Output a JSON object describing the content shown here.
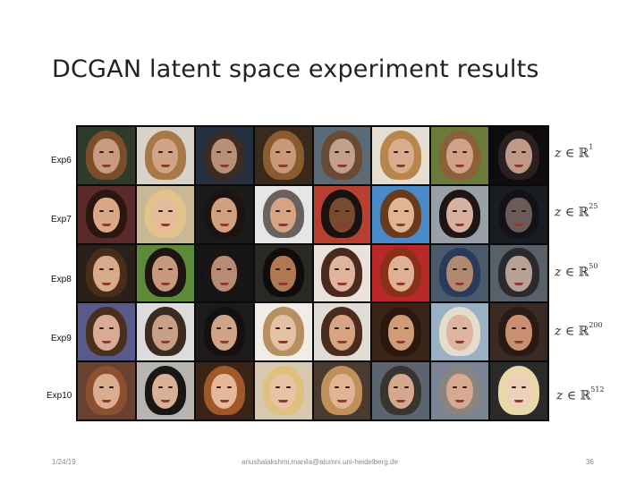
{
  "title": "DCGAN latent space experiment results",
  "rows": [
    {
      "label": "Exp6",
      "formula": {
        "var": "z",
        "op": "∈",
        "set": "ℝ",
        "exp": "1"
      },
      "cells": [
        {
          "bg": "#2e3a2a",
          "hair": "#7a4e2a",
          "skin": "#c89a80"
        },
        {
          "bg": "#d8d2c8",
          "hair": "#a87848",
          "skin": "#d0a484"
        },
        {
          "bg": "#243040",
          "hair": "#3a2c24",
          "skin": "#b89078"
        },
        {
          "bg": "#3a2a1e",
          "hair": "#8a5a30",
          "skin": "#c89878"
        },
        {
          "bg": "#5a6a76",
          "hair": "#6a4a34",
          "skin": "#c4a08a"
        },
        {
          "bg": "#e4ddd2",
          "hair": "#b8864c",
          "skin": "#d8ac8c"
        },
        {
          "bg": "#6a7a3a",
          "hair": "#8a6038",
          "skin": "#d0a088"
        },
        {
          "bg": "#0e0c0c",
          "hair": "#2a2020",
          "skin": "#c09888"
        }
      ]
    },
    {
      "label": "Exp7",
      "formula": {
        "var": "z",
        "op": "∈",
        "set": "ℝ",
        "exp": "25"
      },
      "cells": [
        {
          "bg": "#5a2a2a",
          "hair": "#2a1810",
          "skin": "#d8a888"
        },
        {
          "bg": "#c8b898",
          "hair": "#e2c488",
          "skin": "#e4bc9c"
        },
        {
          "bg": "#1a1a1a",
          "hair": "#1c1410",
          "skin": "#d0a080"
        },
        {
          "bg": "#e6e6e6",
          "hair": "#6a6060",
          "skin": "#d4a484"
        },
        {
          "bg": "#b84030",
          "hair": "#1a1210",
          "skin": "#7a4a30"
        },
        {
          "bg": "#4a8ac8",
          "hair": "#6a3a1c",
          "skin": "#e0b494"
        },
        {
          "bg": "#9aa0a8",
          "hair": "#1e1614",
          "skin": "#d8b0a0"
        },
        {
          "bg": "#1a1c24",
          "hair": "#141218",
          "skin": "#6a5a58"
        }
      ]
    },
    {
      "label": "Exp8",
      "formula": {
        "var": "z",
        "op": "∈",
        "set": "ℝ",
        "exp": "50"
      },
      "cells": [
        {
          "bg": "#2a201a",
          "hair": "#4a2c1a",
          "skin": "#d8aa8c"
        },
        {
          "bg": "#5a8a3a",
          "hair": "#1e1410",
          "skin": "#c8987c"
        },
        {
          "bg": "#141414",
          "hair": "#1a1414",
          "skin": "#b88c74"
        },
        {
          "bg": "#2a2824",
          "hair": "#100c0c",
          "skin": "#b07850"
        },
        {
          "bg": "#e8e2da",
          "hair": "#4a2a1c",
          "skin": "#e0b49c"
        },
        {
          "bg": "#b82828",
          "hair": "#8a3018",
          "skin": "#e0b094"
        },
        {
          "bg": "#4a5a6a",
          "hair": "#2a3a5a",
          "skin": "#b08a70"
        },
        {
          "bg": "#586068",
          "hair": "#2a2a2e",
          "skin": "#b8a094"
        }
      ]
    },
    {
      "label": "Exp9",
      "formula": {
        "var": "z",
        "op": "∈",
        "set": "ℝ",
        "exp": "200"
      },
      "cells": [
        {
          "bg": "#5a5a8a",
          "hair": "#4a2e1e",
          "skin": "#d8ac94"
        },
        {
          "bg": "#dcdcdc",
          "hair": "#3a2a20",
          "skin": "#c8a088"
        },
        {
          "bg": "#1c1a1a",
          "hair": "#141010",
          "skin": "#d0a488"
        },
        {
          "bg": "#f0ece6",
          "hair": "#b89060",
          "skin": "#e4c0a4"
        },
        {
          "bg": "#e0dcd6",
          "hair": "#4a2c1c",
          "skin": "#d8a484"
        },
        {
          "bg": "#3a2418",
          "hair": "#2a1810",
          "skin": "#d09c78"
        },
        {
          "bg": "#9ab0c4",
          "hair": "#e4dccc",
          "skin": "#dcb4a0"
        },
        {
          "bg": "#3a2a24",
          "hair": "#2a1a14",
          "skin": "#c89070"
        }
      ]
    },
    {
      "label": "Exp10",
      "formula": {
        "var": "z",
        "op": "∈",
        "set": "ℝ",
        "exp": "512"
      },
      "cells": [
        {
          "bg": "#6a4030",
          "hair": "#8a5030",
          "skin": "#dcac90"
        },
        {
          "bg": "#b8b4b0",
          "hair": "#1a1614",
          "skin": "#d8b098"
        },
        {
          "bg": "#3a2418",
          "hair": "#a05828",
          "skin": "#e4b898"
        },
        {
          "bg": "#d8c8b0",
          "hair": "#e0c080",
          "skin": "#e8c4a4"
        },
        {
          "bg": "#4a3a30",
          "hair": "#c09058",
          "skin": "#e0b494"
        },
        {
          "bg": "#5a6470",
          "hair": "#3a3430",
          "skin": "#d4a88c"
        },
        {
          "bg": "#7a8494",
          "hair": "#8a8480",
          "skin": "#d8a890"
        },
        {
          "bg": "#2a2a2a",
          "hair": "#e8d8a8",
          "skin": "#ecd0b8"
        }
      ]
    }
  ],
  "footer": {
    "date": "1/24/19",
    "email": "anushalakshmi.manila@alumni.uni-heidelberg.de",
    "page": "36"
  }
}
